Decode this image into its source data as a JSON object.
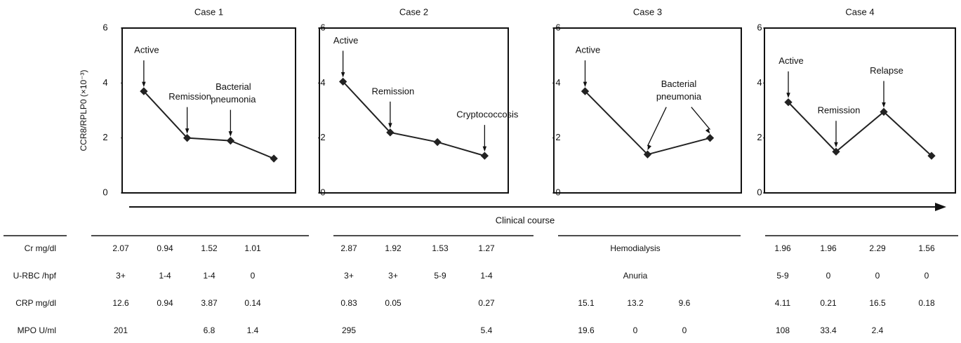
{
  "chart_data": [
    {
      "type": "line",
      "title": "Case 1",
      "ylabel": "CCR8/RPLP0 (×10⁻³)",
      "categories": [
        null,
        null,
        null,
        null
      ],
      "values": [
        3.7,
        2.0,
        1.9,
        1.25
      ],
      "color": "#222222",
      "ylim": [
        0,
        6
      ],
      "yticks": [
        0,
        2,
        4,
        6
      ],
      "annotations": [
        {
          "lines": [
            "Active"
          ],
          "points": [
            0
          ]
        },
        {
          "lines": [
            "Remission"
          ],
          "points": [
            1
          ]
        },
        {
          "lines": [
            "Bacterial",
            "pneumonia"
          ],
          "points": [
            2
          ]
        }
      ]
    },
    {
      "type": "line",
      "title": "Case 2",
      "categories": [
        null,
        null,
        null,
        null
      ],
      "values": [
        4.05,
        2.2,
        1.85,
        1.35
      ],
      "color": "#222222",
      "ylim": [
        0,
        6
      ],
      "yticks": [
        0,
        2,
        4,
        6
      ],
      "annotations": [
        {
          "lines": [
            "Active"
          ],
          "points": [
            0
          ]
        },
        {
          "lines": [
            "Remission"
          ],
          "points": [
            1
          ]
        },
        {
          "lines": [
            "Cryptococcosis"
          ],
          "points": [
            3
          ]
        }
      ]
    },
    {
      "type": "line",
      "title": "Case 3",
      "categories": [
        null,
        null,
        null
      ],
      "values": [
        3.7,
        1.4,
        2.0
      ],
      "color": "#222222",
      "ylim": [
        0,
        6
      ],
      "yticks": [
        0,
        2,
        4,
        6
      ],
      "annotations": [
        {
          "lines": [
            "Active"
          ],
          "points": [
            0
          ]
        },
        {
          "lines": [
            "Bacterial",
            "pneumonia"
          ],
          "points": [
            1,
            2
          ]
        }
      ]
    },
    {
      "type": "line",
      "title": "Case 4",
      "categories": [
        null,
        null,
        null,
        null
      ],
      "values": [
        3.3,
        1.5,
        2.95,
        1.35
      ],
      "color": "#222222",
      "ylim": [
        0,
        6
      ],
      "yticks": [
        0,
        2,
        4,
        6
      ],
      "annotations": [
        {
          "lines": [
            "Active"
          ],
          "points": [
            0
          ]
        },
        {
          "lines": [
            "Remission"
          ],
          "points": [
            1
          ]
        },
        {
          "lines": [
            "Relapse"
          ],
          "points": [
            2
          ]
        }
      ]
    }
  ],
  "course_label": "Clinical course",
  "table": {
    "rows": [
      {
        "label": "Cr mg/dl",
        "cases": [
          [
            "2.07",
            "0.94",
            "1.52",
            "1.01"
          ],
          [
            "2.87",
            "1.92",
            "1.53",
            "1.27"
          ],
          [
            "Hemodialysis"
          ],
          [
            "1.96",
            "1.96",
            "2.29",
            "1.56"
          ]
        ]
      },
      {
        "label": "U-RBC /hpf",
        "cases": [
          [
            "3+",
            "1-4",
            "1-4",
            "0"
          ],
          [
            "3+",
            "3+",
            "5-9",
            "1-4"
          ],
          [
            "Anuria"
          ],
          [
            "5-9",
            "0",
            "0",
            "0"
          ]
        ]
      },
      {
        "label": "CRP mg/dl",
        "cases": [
          [
            "12.6",
            "0.94",
            "3.87",
            "0.14"
          ],
          [
            "0.83",
            "0.05",
            null,
            "0.27"
          ],
          [
            "15.1",
            "13.2",
            "9.6"
          ],
          [
            "4.11",
            "0.21",
            "16.5",
            "0.18"
          ]
        ]
      },
      {
        "label": "MPO U/ml",
        "cases": [
          [
            "201",
            null,
            "6.8",
            "1.4"
          ],
          [
            "295",
            null,
            null,
            "5.4"
          ],
          [
            "19.6",
            "0",
            "0"
          ],
          [
            "108",
            "33.4",
            "2.4",
            null
          ]
        ]
      }
    ]
  }
}
